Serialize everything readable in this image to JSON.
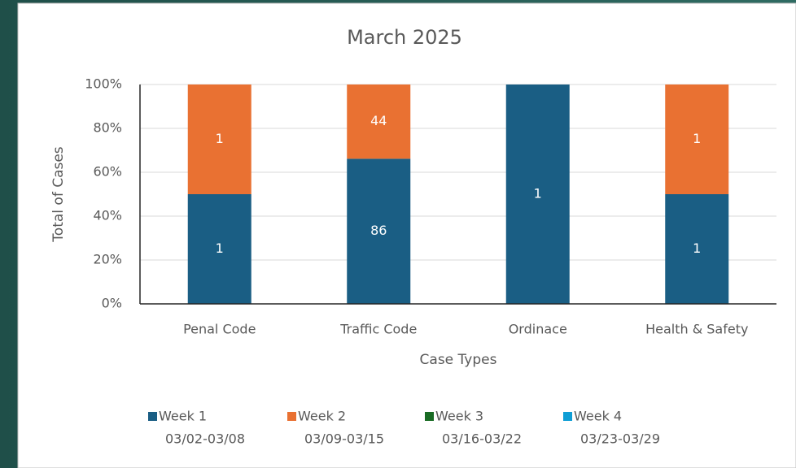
{
  "chart_data": {
    "type": "bar",
    "stack": "percent",
    "title": "March  2025",
    "x_label": "Case Types",
    "y_label": "Total of Cases",
    "categories": [
      "Penal Code",
      "Traffic Code",
      "Ordinace",
      "Health & Safety"
    ],
    "series": [
      {
        "name": "Week 1",
        "dates": "03/02-03/08",
        "color": "#1a5e84",
        "values": [
          1,
          86,
          1,
          1
        ]
      },
      {
        "name": "Week 2",
        "dates": "03/09-03/15",
        "color": "#e97132",
        "values": [
          1,
          44,
          null,
          1
        ]
      },
      {
        "name": "Week 3",
        "dates": "03/16-03/22",
        "color": "#196b24",
        "values": [
          null,
          null,
          null,
          null
        ]
      },
      {
        "name": "Week 4",
        "dates": "03/23-03/29",
        "color": "#0f9ed5",
        "values": [
          null,
          null,
          null,
          null
        ]
      }
    ],
    "ylim": [
      0,
      100
    ],
    "yticks": [
      {
        "value": 0,
        "label": "0%"
      },
      {
        "value": 20,
        "label": "20%"
      },
      {
        "value": 40,
        "label": "40%"
      },
      {
        "value": 60,
        "label": "60%"
      },
      {
        "value": 80,
        "label": "80%"
      },
      {
        "value": 100,
        "label": "100%"
      }
    ],
    "grid": true,
    "legend": "bottom"
  }
}
